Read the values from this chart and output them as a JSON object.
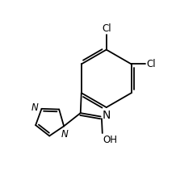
{
  "background": "#ffffff",
  "line_color": "#000000",
  "lw": 1.3,
  "fs": 8.5,
  "cl1": "Cl",
  "cl2": "Cl",
  "N_imid1": "N",
  "N_imid2": "N",
  "N_oxime": "N",
  "OH": "OH"
}
